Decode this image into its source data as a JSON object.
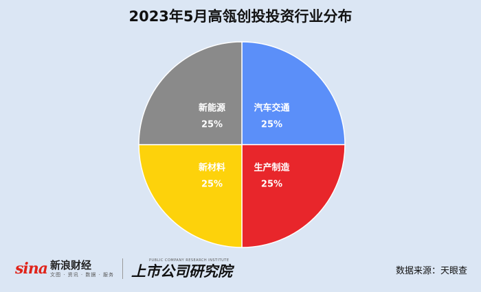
{
  "chart_data": {
    "type": "pie",
    "title": "2023年5月高瓴创投投资行业分布",
    "slices": [
      {
        "label": "汽车交通",
        "value": 25,
        "value_label": "25%",
        "color": "#5b8ff9"
      },
      {
        "label": "生产制造",
        "value": 25,
        "value_label": "25%",
        "color": "#e8262b"
      },
      {
        "label": "新材料",
        "value": 25,
        "value_label": "25%",
        "color": "#fdd20b"
      },
      {
        "label": "新能源",
        "value": 25,
        "value_label": "25%",
        "color": "#8a8a8a"
      }
    ],
    "legend": "none"
  },
  "footer": {
    "sina_logo": "sina",
    "brand_name": "新浪财经",
    "brand_tagline": "文图 · 资讯 · 数据 · 服务",
    "lab_en": "PUBLIC COMPANY RESEARCH INSTITUTE",
    "lab_name": "上市公司研究院",
    "source": "数据来源：天眼查"
  }
}
